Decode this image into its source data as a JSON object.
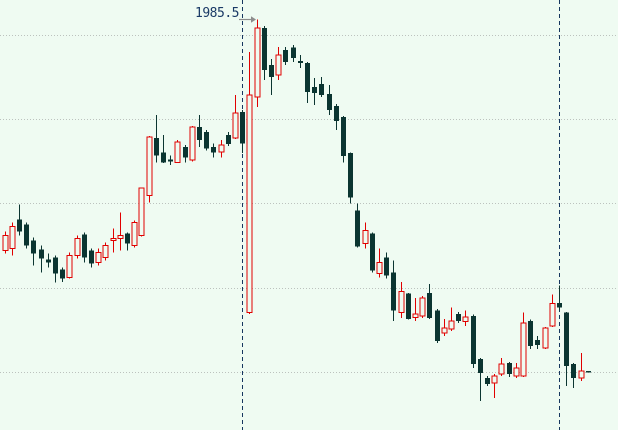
{
  "chart_data": {
    "type": "candlestick",
    "title": "",
    "annotation": {
      "text": "1985.5",
      "price": 1985.5,
      "candle_index": 35
    },
    "style": {
      "background": "#effbf2",
      "up_color": "#e10000",
      "down_color": "#0b3531",
      "grid_color": "#bcc2be",
      "vline_color": "#16365f",
      "annotation_text_color": "#1a3a66",
      "arrow_color": "#8c8c8c"
    },
    "y_axis": {
      "gridline_prices": [
        1980,
        1950,
        1920,
        1890,
        1860
      ],
      "labels_visible": false,
      "ylim": [
        1848,
        1992
      ]
    },
    "x_axis": {
      "labels_visible": false
    },
    "vlines": [
      {
        "candle_index": 33
      },
      {
        "candle_index": 77
      }
    ],
    "ohlc_format": "[open, high, low, close]",
    "candles": [
      [
        1903.2,
        1910.0,
        1902.1,
        1908.6
      ],
      [
        1903.9,
        1913.2,
        1901.4,
        1911.8
      ],
      [
        1914.3,
        1919.6,
        1908.6,
        1910.0
      ],
      [
        1912.5,
        1913.2,
        1903.9,
        1905.0
      ],
      [
        1906.8,
        1907.9,
        1897.9,
        1902.1
      ],
      [
        1903.6,
        1905.0,
        1895.4,
        1900.4
      ],
      [
        1900.0,
        1902.1,
        1897.1,
        1898.9
      ],
      [
        1900.7,
        1901.4,
        1891.8,
        1895.0
      ],
      [
        1896.4,
        1897.1,
        1892.1,
        1893.2
      ],
      [
        1893.6,
        1902.5,
        1893.2,
        1901.4
      ],
      [
        1901.4,
        1908.6,
        1900.4,
        1907.5
      ],
      [
        1908.9,
        1909.6,
        1898.9,
        1900.7
      ],
      [
        1903.2,
        1903.9,
        1897.1,
        1898.6
      ],
      [
        1898.9,
        1903.9,
        1897.9,
        1902.5
      ],
      [
        1900.7,
        1906.1,
        1899.6,
        1905.0
      ],
      [
        1906.8,
        1911.1,
        1902.5,
        1907.5
      ],
      [
        1907.5,
        1916.8,
        1903.2,
        1908.6
      ],
      [
        1909.3,
        1909.6,
        1903.2,
        1905.7
      ],
      [
        1905.0,
        1913.9,
        1904.3,
        1913.2
      ],
      [
        1908.6,
        1925.7,
        1908.2,
        1925.4
      ],
      [
        1922.9,
        1943.9,
        1920.4,
        1943.6
      ],
      [
        1943.2,
        1951.4,
        1934.6,
        1937.1
      ],
      [
        1938.2,
        1944.3,
        1934.3,
        1934.6
      ],
      [
        1935.7,
        1937.1,
        1933.6,
        1935.0
      ],
      [
        1934.6,
        1942.5,
        1934.3,
        1941.8
      ],
      [
        1940.0,
        1940.7,
        1934.6,
        1936.4
      ],
      [
        1935.4,
        1947.5,
        1935.0,
        1947.1
      ],
      [
        1947.1,
        1951.4,
        1940.0,
        1942.5
      ],
      [
        1945.4,
        1946.1,
        1938.9,
        1939.6
      ],
      [
        1940.0,
        1941.4,
        1936.4,
        1938.2
      ],
      [
        1938.2,
        1942.5,
        1936.4,
        1940.7
      ],
      [
        1944.3,
        1945.4,
        1940.4,
        1941.1
      ],
      [
        1943.2,
        1958.6,
        1942.9,
        1952.1
      ],
      [
        1952.5,
        1953.2,
        1937.9,
        1941.4
      ],
      [
        1881.1,
        1973.9,
        1880.7,
        1958.6
      ],
      [
        1957.9,
        1985.5,
        1954.3,
        1982.5
      ],
      [
        1982.5,
        1983.2,
        1963.9,
        1967.5
      ],
      [
        1969.3,
        1971.4,
        1958.6,
        1965.0
      ],
      [
        1965.7,
        1975.7,
        1963.9,
        1972.9
      ],
      [
        1974.6,
        1975.7,
        1969.3,
        1970.4
      ],
      [
        1975.4,
        1976.4,
        1970.4,
        1971.8
      ],
      [
        1970.7,
        1972.9,
        1968.2,
        1970.0
      ],
      [
        1970.0,
        1970.4,
        1955.7,
        1959.6
      ],
      [
        1961.4,
        1964.6,
        1955.0,
        1959.3
      ],
      [
        1962.5,
        1965.0,
        1957.9,
        1958.6
      ],
      [
        1958.9,
        1962.1,
        1951.4,
        1953.2
      ],
      [
        1954.6,
        1955.4,
        1946.1,
        1949.3
      ],
      [
        1950.7,
        1951.1,
        1934.6,
        1936.8
      ],
      [
        1937.9,
        1938.2,
        1920.0,
        1922.1
      ],
      [
        1917.5,
        1920.0,
        1904.3,
        1904.6
      ],
      [
        1905.7,
        1913.2,
        1903.9,
        1910.4
      ],
      [
        1909.3,
        1909.6,
        1895.4,
        1896.1
      ],
      [
        1895.0,
        1903.9,
        1893.6,
        1898.9
      ],
      [
        1900.7,
        1902.5,
        1893.2,
        1894.3
      ],
      [
        1895.4,
        1899.6,
        1878.2,
        1881.8
      ],
      [
        1881.1,
        1892.1,
        1879.3,
        1888.6
      ],
      [
        1887.9,
        1888.2,
        1878.6,
        1878.9
      ],
      [
        1879.3,
        1886.4,
        1878.2,
        1880.7
      ],
      [
        1880.0,
        1887.1,
        1879.3,
        1886.4
      ],
      [
        1888.2,
        1891.4,
        1878.9,
        1879.3
      ],
      [
        1881.8,
        1882.5,
        1870.4,
        1871.1
      ],
      [
        1873.9,
        1878.9,
        1872.9,
        1875.7
      ],
      [
        1875.4,
        1882.9,
        1874.6,
        1878.2
      ],
      [
        1880.7,
        1881.4,
        1877.5,
        1878.2
      ],
      [
        1877.9,
        1881.8,
        1876.4,
        1879.6
      ],
      [
        1880.0,
        1880.4,
        1861.4,
        1862.9
      ],
      [
        1864.6,
        1865.0,
        1849.6,
        1859.6
      ],
      [
        1857.9,
        1858.6,
        1855.0,
        1855.7
      ],
      [
        1856.1,
        1859.3,
        1850.7,
        1858.6
      ],
      [
        1859.3,
        1865.0,
        1858.6,
        1862.9
      ],
      [
        1863.2,
        1863.6,
        1858.2,
        1859.3
      ],
      [
        1858.6,
        1863.2,
        1857.9,
        1861.4
      ],
      [
        1858.6,
        1881.1,
        1858.2,
        1877.5
      ],
      [
        1878.2,
        1878.6,
        1868.2,
        1869.3
      ],
      [
        1871.4,
        1872.9,
        1868.2,
        1869.6
      ],
      [
        1868.6,
        1876.1,
        1868.2,
        1875.7
      ],
      [
        1876.4,
        1887.5,
        1876.1,
        1884.3
      ],
      [
        1884.6,
        1890.7,
        1881.8,
        1882.9
      ],
      [
        1881.1,
        1881.4,
        1855.0,
        1862.1
      ],
      [
        1862.9,
        1863.2,
        1854.3,
        1857.9
      ],
      [
        1857.9,
        1866.8,
        1856.8,
        1860.4
      ],
      [
        1860.4,
        1860.4,
        1860.4,
        1860.4
      ]
    ]
  }
}
